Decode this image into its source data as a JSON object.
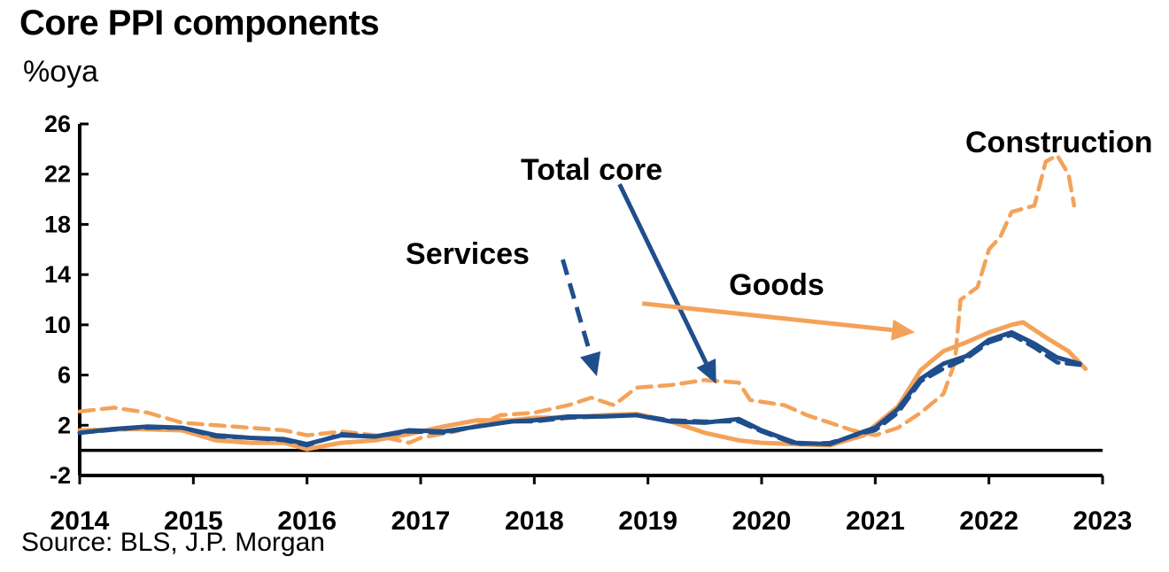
{
  "header": {
    "title": "Core PPI components",
    "unit": "%oya"
  },
  "footer": {
    "source": "Source: BLS, J.P. Morgan"
  },
  "chart_data": {
    "type": "line",
    "title": "Core PPI components",
    "ylabel": "%oya",
    "xlim": [
      2014,
      2023
    ],
    "ylim": [
      -2,
      26
    ],
    "yticks": [
      "26",
      "22",
      "18",
      "14",
      "10",
      "6",
      "2",
      "-2"
    ],
    "xticks": [
      "2014",
      "2015",
      "2016",
      "2017",
      "2018",
      "2019",
      "2020",
      "2021",
      "2022",
      "2023"
    ],
    "source": "Source: BLS, J.P. Morgan",
    "annotations": [
      {
        "text": "Construction",
        "series": "Construction"
      },
      {
        "text": "Total core",
        "series": "Total core"
      },
      {
        "text": "Services",
        "series": "Services"
      },
      {
        "text": "Goods",
        "series": "Goods"
      }
    ],
    "series": [
      {
        "name": "Construction",
        "color": "#F4A259",
        "style": "dashed",
        "points": [
          [
            2014.0,
            3.1
          ],
          [
            2014.3,
            3.4
          ],
          [
            2014.6,
            3.0
          ],
          [
            2014.9,
            2.2
          ],
          [
            2015.2,
            2.0
          ],
          [
            2015.5,
            1.8
          ],
          [
            2015.8,
            1.6
          ],
          [
            2016.0,
            1.2
          ],
          [
            2016.3,
            1.5
          ],
          [
            2016.6,
            1.2
          ],
          [
            2016.9,
            0.6
          ],
          [
            2017.0,
            1.0
          ],
          [
            2017.3,
            1.5
          ],
          [
            2017.5,
            2.0
          ],
          [
            2017.7,
            2.8
          ],
          [
            2018.0,
            3.0
          ],
          [
            2018.3,
            3.6
          ],
          [
            2018.5,
            4.2
          ],
          [
            2018.7,
            3.6
          ],
          [
            2018.9,
            5.0
          ],
          [
            2019.2,
            5.2
          ],
          [
            2019.5,
            5.6
          ],
          [
            2019.8,
            5.4
          ],
          [
            2019.9,
            4.0
          ],
          [
            2020.2,
            3.6
          ],
          [
            2020.4,
            2.8
          ],
          [
            2020.6,
            2.2
          ],
          [
            2020.8,
            1.6
          ],
          [
            2021.0,
            1.2
          ],
          [
            2021.2,
            1.8
          ],
          [
            2021.4,
            3.0
          ],
          [
            2021.6,
            4.5
          ],
          [
            2021.7,
            7.0
          ],
          [
            2021.75,
            12.0
          ],
          [
            2021.9,
            13.0
          ],
          [
            2022.0,
            16.0
          ],
          [
            2022.1,
            17.0
          ],
          [
            2022.2,
            19.0
          ],
          [
            2022.4,
            19.5
          ],
          [
            2022.5,
            23.0
          ],
          [
            2022.6,
            23.5
          ],
          [
            2022.7,
            22.0
          ],
          [
            2022.75,
            19.5
          ]
        ]
      },
      {
        "name": "Goods",
        "color": "#F4A259",
        "style": "solid",
        "points": [
          [
            2014.0,
            1.6
          ],
          [
            2014.5,
            1.7
          ],
          [
            2014.9,
            1.6
          ],
          [
            2015.2,
            0.8
          ],
          [
            2015.5,
            0.6
          ],
          [
            2015.8,
            0.6
          ],
          [
            2016.0,
            0.1
          ],
          [
            2016.3,
            0.6
          ],
          [
            2016.6,
            0.8
          ],
          [
            2016.9,
            1.3
          ],
          [
            2017.2,
            1.9
          ],
          [
            2017.5,
            2.4
          ],
          [
            2017.8,
            2.4
          ],
          [
            2018.0,
            2.6
          ],
          [
            2018.3,
            2.6
          ],
          [
            2018.6,
            2.8
          ],
          [
            2018.9,
            2.9
          ],
          [
            2019.2,
            2.3
          ],
          [
            2019.5,
            1.4
          ],
          [
            2019.8,
            0.8
          ],
          [
            2020.0,
            0.6
          ],
          [
            2020.3,
            0.5
          ],
          [
            2020.6,
            0.4
          ],
          [
            2020.9,
            1.2
          ],
          [
            2021.0,
            2.0
          ],
          [
            2021.2,
            3.5
          ],
          [
            2021.4,
            6.4
          ],
          [
            2021.6,
            7.9
          ],
          [
            2021.8,
            8.6
          ],
          [
            2022.0,
            9.4
          ],
          [
            2022.2,
            10.0
          ],
          [
            2022.3,
            10.2
          ],
          [
            2022.5,
            9.0
          ],
          [
            2022.7,
            7.9
          ],
          [
            2022.85,
            6.5
          ]
        ]
      },
      {
        "name": "Services",
        "color": "#1F4E8C",
        "style": "dashed",
        "points": [
          [
            2014.0,
            1.4
          ],
          [
            2014.5,
            1.8
          ],
          [
            2014.9,
            1.8
          ],
          [
            2015.2,
            1.1
          ],
          [
            2015.5,
            1.0
          ],
          [
            2015.8,
            0.8
          ],
          [
            2016.0,
            0.4
          ],
          [
            2016.3,
            1.3
          ],
          [
            2016.6,
            1.1
          ],
          [
            2016.9,
            1.5
          ],
          [
            2017.2,
            1.4
          ],
          [
            2017.5,
            1.9
          ],
          [
            2017.8,
            2.3
          ],
          [
            2018.0,
            2.3
          ],
          [
            2018.3,
            2.6
          ],
          [
            2018.6,
            2.7
          ],
          [
            2018.9,
            2.8
          ],
          [
            2019.2,
            2.4
          ],
          [
            2019.5,
            2.3
          ],
          [
            2019.8,
            2.3
          ],
          [
            2020.0,
            1.5
          ],
          [
            2020.3,
            0.5
          ],
          [
            2020.6,
            0.6
          ],
          [
            2020.9,
            1.4
          ],
          [
            2021.0,
            1.6
          ],
          [
            2021.2,
            3.0
          ],
          [
            2021.4,
            5.5
          ],
          [
            2021.6,
            6.5
          ],
          [
            2021.8,
            7.3
          ],
          [
            2022.0,
            8.6
          ],
          [
            2022.2,
            9.2
          ],
          [
            2022.4,
            8.2
          ],
          [
            2022.6,
            7.0
          ],
          [
            2022.8,
            6.8
          ]
        ]
      },
      {
        "name": "Total core",
        "color": "#1F4E8C",
        "style": "solid",
        "points": [
          [
            2014.0,
            1.4
          ],
          [
            2014.3,
            1.7
          ],
          [
            2014.6,
            1.9
          ],
          [
            2014.9,
            1.8
          ],
          [
            2015.2,
            1.2
          ],
          [
            2015.5,
            1.0
          ],
          [
            2015.8,
            0.9
          ],
          [
            2016.0,
            0.5
          ],
          [
            2016.3,
            1.2
          ],
          [
            2016.6,
            1.1
          ],
          [
            2016.9,
            1.6
          ],
          [
            2017.2,
            1.5
          ],
          [
            2017.5,
            1.9
          ],
          [
            2017.8,
            2.3
          ],
          [
            2018.0,
            2.4
          ],
          [
            2018.3,
            2.7
          ],
          [
            2018.6,
            2.7
          ],
          [
            2018.9,
            2.8
          ],
          [
            2019.2,
            2.3
          ],
          [
            2019.5,
            2.2
          ],
          [
            2019.8,
            2.5
          ],
          [
            2020.0,
            1.6
          ],
          [
            2020.3,
            0.6
          ],
          [
            2020.6,
            0.5
          ],
          [
            2020.9,
            1.5
          ],
          [
            2021.0,
            1.8
          ],
          [
            2021.2,
            3.3
          ],
          [
            2021.4,
            5.7
          ],
          [
            2021.6,
            6.9
          ],
          [
            2021.8,
            7.5
          ],
          [
            2022.0,
            8.8
          ],
          [
            2022.2,
            9.4
          ],
          [
            2022.4,
            8.5
          ],
          [
            2022.6,
            7.4
          ],
          [
            2022.8,
            6.9
          ]
        ]
      }
    ],
    "arrows": [
      {
        "series": "Total core",
        "from": [
          2018.75,
          21.2
        ],
        "to": [
          2019.6,
          5.3
        ]
      },
      {
        "series": "Services",
        "from": [
          2018.25,
          15.2
        ],
        "to": [
          2018.55,
          5.9
        ]
      },
      {
        "series": "Goods",
        "from": [
          2018.95,
          11.7
        ],
        "to": [
          2021.35,
          9.4
        ]
      }
    ]
  }
}
